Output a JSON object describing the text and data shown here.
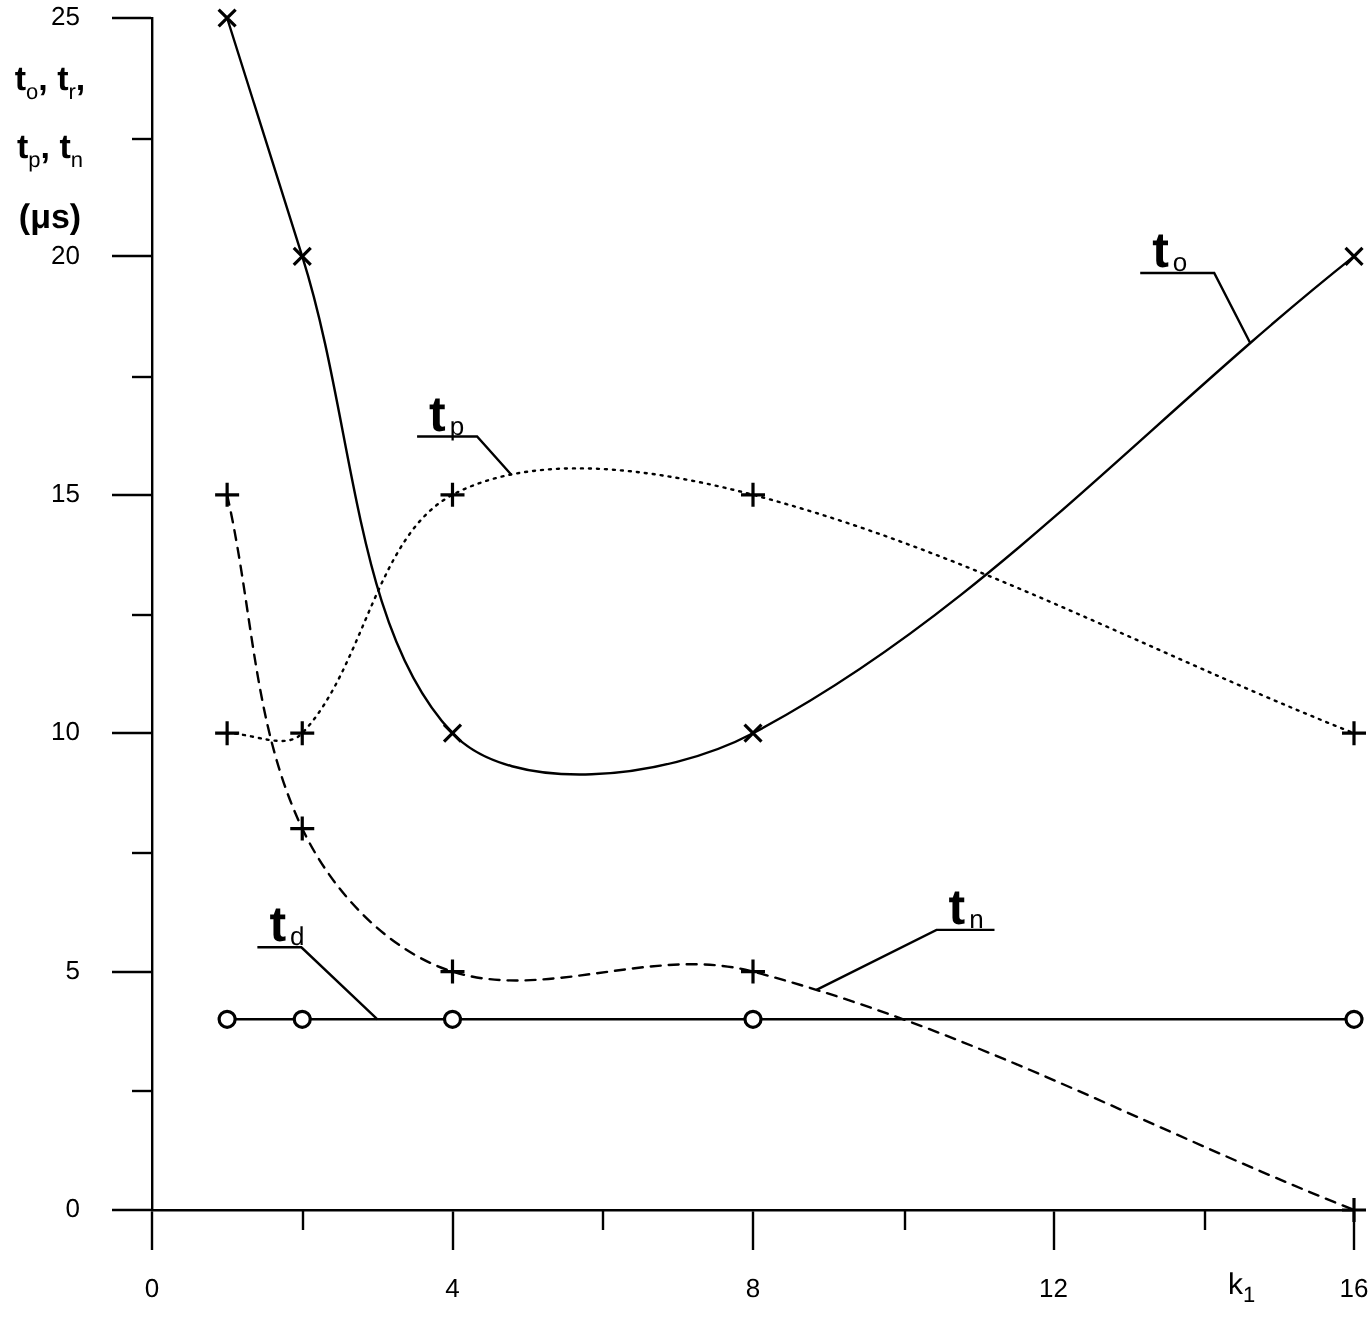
{
  "chart_data": {
    "type": "line",
    "ylabel": "t$_{o}$, t$_{r}$, t$_{p}$, t$_{n}$ (μs)",
    "xlabel": "k$_{1}$",
    "x": [
      1,
      2,
      4,
      8,
      16
    ],
    "series": [
      {
        "name": "t$_{o}$",
        "color": "#000000",
        "values": [
          25,
          20,
          10,
          10,
          20
        ],
        "marker": "x",
        "line_style": "solid"
      },
      {
        "name": "t$_{p}$",
        "color": "#000000",
        "values": [
          10,
          10,
          15,
          15,
          10
        ],
        "marker": "cross",
        "line_style": "dotted"
      },
      {
        "name": "t$_{n}$",
        "color": "#000000",
        "values": [
          15,
          8,
          5,
          5,
          0
        ],
        "marker": "cross",
        "line_style": "dashed"
      },
      {
        "name": "t$_{d}$",
        "color": "#000000",
        "values": [
          4,
          4,
          4,
          4,
          4
        ],
        "marker": "circle",
        "line_style": "solid"
      }
    ],
    "xlim": [
      0,
      16
    ],
    "xticks": [
      0,
      {
        "value": 2,
        "label": null
      },
      4,
      {
        "value": 6,
        "label": null
      },
      8,
      {
        "value": 10,
        "label": null
      },
      12,
      {
        "value": 14,
        "label": null
      },
      16
    ],
    "ylim": [
      0,
      25
    ],
    "yticks": [
      0,
      {
        "value": 2.5,
        "label": null
      },
      5,
      {
        "value": 7.5,
        "label": null
      },
      10,
      {
        "value": 12.5,
        "label": null
      },
      15,
      {
        "value": 17.5,
        "label": null
      },
      20,
      {
        "value": 22.5,
        "label": null
      },
      25
    ],
    "grid": false,
    "legend": false
  }
}
